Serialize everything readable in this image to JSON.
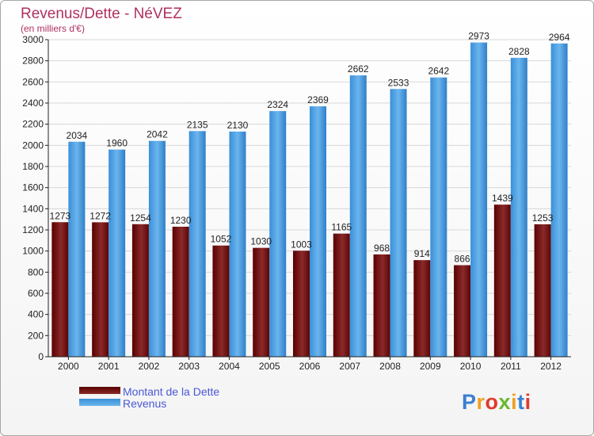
{
  "chart_data": {
    "type": "bar",
    "title": "Revenus/Dette - NéVEZ",
    "subtitle": "(en milliers d'€)",
    "categories": [
      "2000",
      "2001",
      "2002",
      "2003",
      "2004",
      "2005",
      "2006",
      "2007",
      "2008",
      "2009",
      "2010",
      "2011",
      "2012"
    ],
    "series": [
      {
        "name": "Montant de la Dette",
        "color": "#7a1212",
        "values": [
          1273,
          1272,
          1254,
          1230,
          1052,
          1030,
          1003,
          1165,
          968,
          914,
          866,
          1439,
          1253
        ]
      },
      {
        "name": "Revenus",
        "color": "#4ca2e6",
        "values": [
          2034,
          1960,
          2042,
          2135,
          2130,
          2324,
          2369,
          2662,
          2533,
          2642,
          2973,
          2828,
          2964
        ]
      }
    ],
    "ylim": [
      0,
      3000
    ],
    "ytick_step": 200,
    "grid": true,
    "legend": "bottom-left"
  },
  "branding": {
    "logo_text": "Proxiti",
    "logo_colors": [
      "#3b7fd0",
      "#f0a020",
      "#e03a2a",
      "#6ab82f",
      "#f0a020",
      "#3b7fd0",
      "#e03a2a"
    ]
  }
}
